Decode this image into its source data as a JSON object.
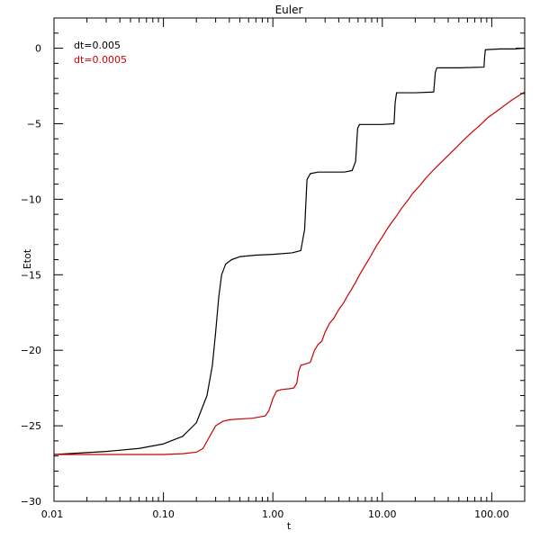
{
  "chart_data": {
    "type": "line",
    "title": "Euler",
    "xlabel": "t",
    "ylabel": "Etot",
    "xscale": "log",
    "xlim": [
      0.01,
      200
    ],
    "ylim": [
      -30,
      2
    ],
    "xticks": [
      {
        "value": 0.01,
        "label": "0.01"
      },
      {
        "value": 0.1,
        "label": "0.10"
      },
      {
        "value": 1,
        "label": "1.00"
      },
      {
        "value": 10,
        "label": "10.00"
      },
      {
        "value": 100,
        "label": "100.00"
      }
    ],
    "yticks": [
      {
        "value": 0,
        "label": "0"
      },
      {
        "value": -5,
        "label": "−5"
      },
      {
        "value": -10,
        "label": "−10"
      },
      {
        "value": -15,
        "label": "−15"
      },
      {
        "value": -20,
        "label": "−20"
      },
      {
        "value": -25,
        "label": "−25"
      },
      {
        "value": -30,
        "label": "−30"
      }
    ],
    "grid": false,
    "legend": "top-left",
    "series": [
      {
        "name": "dt=0.005",
        "color": "#000000",
        "x": [
          0.01,
          0.03,
          0.06,
          0.1,
          0.15,
          0.2,
          0.25,
          0.28,
          0.3,
          0.32,
          0.34,
          0.37,
          0.42,
          0.5,
          0.7,
          1.0,
          1.5,
          1.8,
          1.95,
          2.05,
          2.2,
          2.6,
          3.5,
          4.5,
          5.3,
          5.7,
          5.95,
          6.2,
          7.5,
          10,
          12.8,
          13.1,
          13.5,
          20,
          29.5,
          30.5,
          31.5,
          50,
          85,
          86,
          87.5,
          120,
          160,
          200
        ],
        "y": [
          -26.9,
          -26.7,
          -26.5,
          -26.2,
          -25.7,
          -24.8,
          -23.0,
          -21.0,
          -18.8,
          -16.5,
          -15.0,
          -14.3,
          -14.0,
          -13.8,
          -13.7,
          -13.65,
          -13.55,
          -13.4,
          -12.0,
          -8.7,
          -8.3,
          -8.2,
          -8.2,
          -8.2,
          -8.1,
          -7.5,
          -5.3,
          -5.05,
          -5.05,
          -5.05,
          -5.0,
          -3.6,
          -2.95,
          -2.95,
          -2.9,
          -1.6,
          -1.3,
          -1.3,
          -1.25,
          -0.6,
          -0.1,
          -0.05,
          -0.05,
          0.0
        ]
      },
      {
        "name": "dt=0.0005",
        "color": "#cc0000",
        "x": [
          0.01,
          0.05,
          0.1,
          0.15,
          0.2,
          0.23,
          0.26,
          0.3,
          0.35,
          0.4,
          0.5,
          0.65,
          0.85,
          0.92,
          1.0,
          1.08,
          1.2,
          1.4,
          1.55,
          1.65,
          1.72,
          1.8,
          2.0,
          2.2,
          2.4,
          2.6,
          2.8,
          3.0,
          3.3,
          3.6,
          4.0,
          4.4,
          4.8,
          5.2,
          5.7,
          6.2,
          6.8,
          7.5,
          8.2,
          9.0,
          10,
          11,
          12,
          13.5,
          15,
          17,
          19,
          22,
          25,
          29,
          34,
          40,
          47,
          55,
          65,
          78,
          92,
          110,
          130,
          155,
          180,
          200
        ],
        "y": [
          -26.9,
          -26.9,
          -26.9,
          -26.85,
          -26.75,
          -26.5,
          -25.8,
          -25.0,
          -24.7,
          -24.6,
          -24.55,
          -24.5,
          -24.35,
          -24.0,
          -23.2,
          -22.7,
          -22.6,
          -22.55,
          -22.5,
          -22.2,
          -21.4,
          -21.0,
          -20.9,
          -20.8,
          -20.0,
          -19.6,
          -19.4,
          -18.8,
          -18.2,
          -17.9,
          -17.3,
          -16.9,
          -16.4,
          -16.0,
          -15.5,
          -15.0,
          -14.5,
          -14.0,
          -13.5,
          -13.0,
          -12.5,
          -12.0,
          -11.6,
          -11.1,
          -10.6,
          -10.1,
          -9.6,
          -9.1,
          -8.6,
          -8.1,
          -7.6,
          -7.1,
          -6.6,
          -6.1,
          -5.6,
          -5.1,
          -4.6,
          -4.2,
          -3.8,
          -3.4,
          -3.1,
          -2.9
        ]
      }
    ]
  }
}
